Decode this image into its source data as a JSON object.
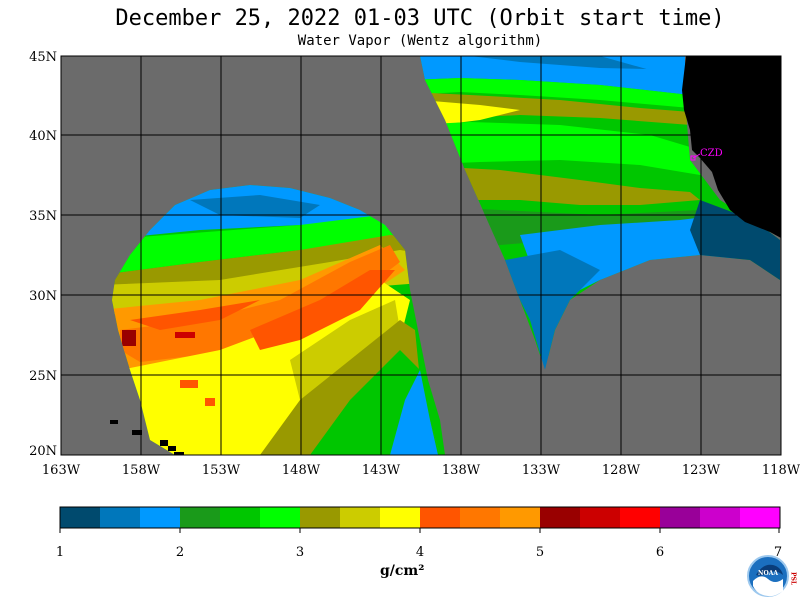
{
  "title": "December 25, 2022  01-03 UTC  (Orbit start time)",
  "subtitle": "Water Vapor (Wentz algorithm)",
  "colors": {
    "land": "#000000",
    "nodata": "#6b6b6b",
    "grid": "#000000",
    "marker": "#ff00ff"
  },
  "map": {
    "lon_range": [
      -163,
      -118
    ],
    "lat_range": [
      20,
      45
    ],
    "lat_labels": [
      "45N",
      "40N",
      "35N",
      "30N",
      "25N",
      "20N"
    ],
    "lon_labels": [
      "163W",
      "158W",
      "153W",
      "148W",
      "143W",
      "138W",
      "133W",
      "128W",
      "123W",
      "118W"
    ],
    "station": {
      "label": "CZD",
      "lon": -123.0,
      "lat": 38.6
    }
  },
  "colorbar": {
    "colors": [
      "#004a6e",
      "#0077bb",
      "#0099ff",
      "#1a9a1a",
      "#00c600",
      "#00ff00",
      "#999900",
      "#cccc00",
      "#ffff00",
      "#ff5500",
      "#ff7700",
      "#ff9900",
      "#990000",
      "#cc0000",
      "#ff0000",
      "#990099",
      "#cc00cc",
      "#ff00ff"
    ],
    "tick_labels": [
      "1",
      "2",
      "3",
      "4",
      "5",
      "6",
      "7"
    ],
    "units_label": "g/cm²"
  },
  "logo": {
    "text": "NOAA",
    "side_text": "PSL"
  }
}
